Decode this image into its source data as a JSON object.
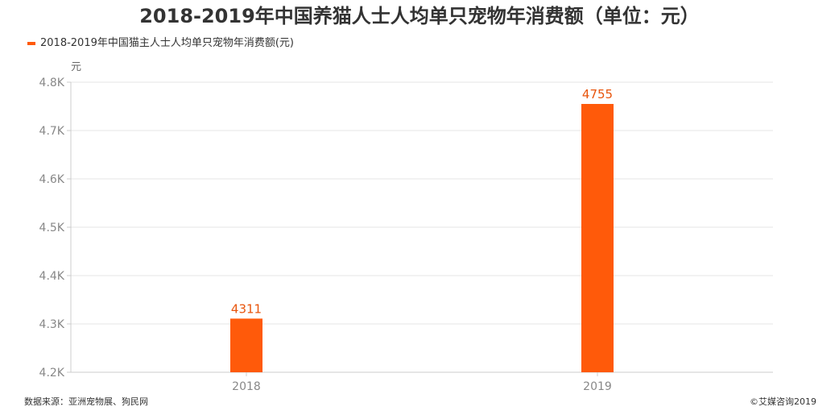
{
  "chart_data": {
    "type": "bar",
    "title": "2018-2019年中国养猫人士人均单只宠物年消费额（单位：元）",
    "ylabel": "元",
    "xlabel": "",
    "categories": [
      "2018",
      "2019"
    ],
    "series": [
      {
        "name": "2018-2019年中国猫主人士人均单只宠物年消费额(元)",
        "values": [
          4311,
          4755
        ],
        "color": "#ff5a0a"
      }
    ],
    "ylim": [
      4200,
      4800
    ],
    "yticks": [
      4200,
      4300,
      4400,
      4500,
      4600,
      4700,
      4800
    ],
    "ytick_labels": [
      "4.2K",
      "4.3K",
      "4.4K",
      "4.5K",
      "4.6K",
      "4.7K",
      "4.8K"
    ],
    "grid": true,
    "legend_position": "top-left",
    "label_color": "#e8550c"
  },
  "footer": {
    "source": "数据来源：亚洲宠物展、狗民网",
    "copyright": "©艾媒咨询2019"
  }
}
